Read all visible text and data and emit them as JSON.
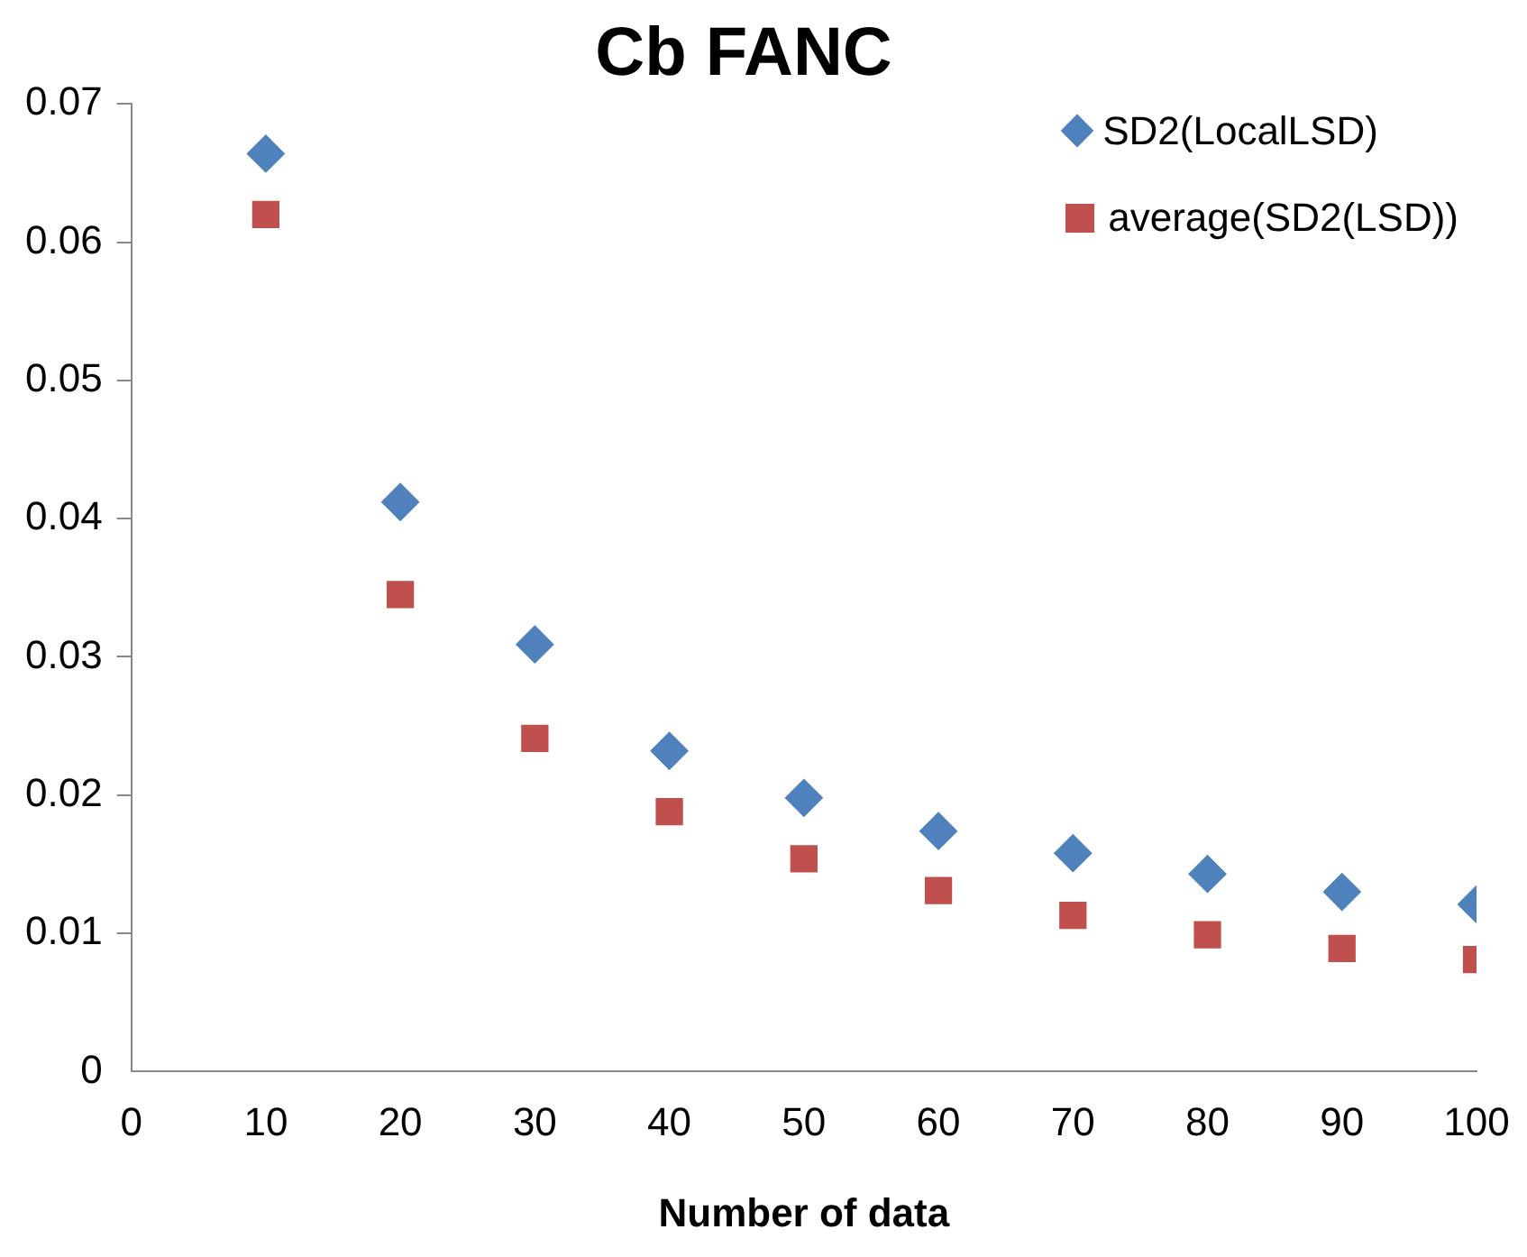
{
  "chart_data": {
    "type": "scatter",
    "title": "Cb FANC",
    "xlabel": "Number of data",
    "x": [
      10,
      20,
      30,
      40,
      50,
      60,
      70,
      80,
      90,
      100
    ],
    "series": [
      {
        "name": "SD2(LocalLSD)",
        "color": "#4f81bd",
        "marker": "diamond",
        "values": [
          0.0664,
          0.0412,
          0.0309,
          0.0232,
          0.0198,
          0.0174,
          0.0158,
          0.0143,
          0.013,
          0.0121
        ]
      },
      {
        "name": "average(SD2(LSD))",
        "color": "#c0504d",
        "marker": "square",
        "values": [
          0.062,
          0.0345,
          0.0241,
          0.0188,
          0.0154,
          0.0131,
          0.0113,
          0.0099,
          0.0089,
          0.0081
        ]
      }
    ],
    "xlim": [
      0,
      100
    ],
    "xticks": [
      0,
      10,
      20,
      30,
      40,
      50,
      60,
      70,
      80,
      90,
      100
    ],
    "ylim": [
      0,
      0.07
    ],
    "yticks": [
      0,
      0.01,
      0.02,
      0.03,
      0.04,
      0.05,
      0.06,
      0.07
    ],
    "grid": false,
    "legend": "top right"
  }
}
